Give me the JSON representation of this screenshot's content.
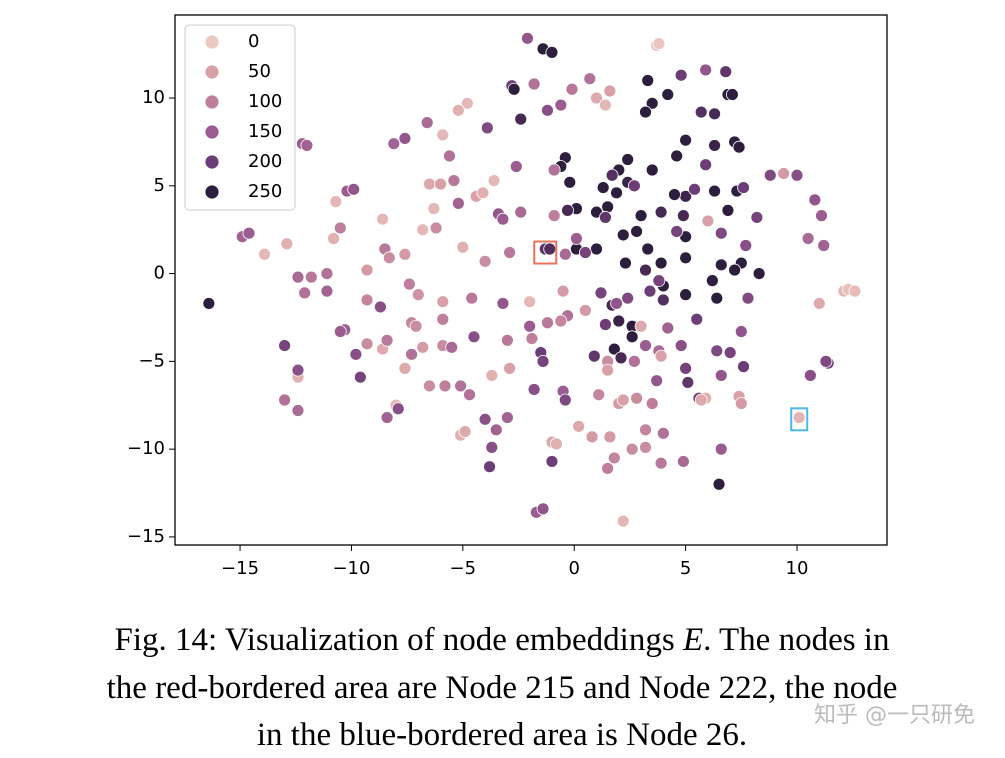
{
  "chart_data": {
    "type": "scatter",
    "xlim": [
      -17.92,
      14.04
    ],
    "ylim": [
      -15.46,
      14.73
    ],
    "xticks": [
      {
        "value": -15,
        "label": "−15"
      },
      {
        "value": -10,
        "label": "−10"
      },
      {
        "value": -5,
        "label": "−5"
      },
      0,
      5,
      10
    ],
    "yticks": [
      {
        "value": -15,
        "label": "−15"
      },
      {
        "value": -10,
        "label": "−10"
      },
      {
        "value": -5,
        "label": "−5"
      },
      0,
      5,
      10
    ],
    "legend": {
      "loc": "upper left",
      "labels": [
        0,
        50,
        100,
        150,
        200,
        250
      ],
      "colors": [
        "#ecc8c1",
        "#d9a1a7",
        "#bf7f9c",
        "#9b5c91",
        "#6d3d77",
        "#2e1e3d"
      ]
    },
    "highlights": [
      {
        "x": -1.3,
        "y": 1.2,
        "color": "#e8735a"
      },
      {
        "x": 10.1,
        "y": -8.3,
        "color": "#4db8e8"
      }
    ],
    "x": [
      -2.1,
      -1.4,
      -1.0,
      3.7,
      3.8,
      -2.8,
      -2.7,
      -1.8,
      0.7,
      1.0,
      1.6,
      1.4,
      -0.1,
      -0.6,
      -1.2,
      -2.4,
      -3.9,
      -4.8,
      -5.2,
      -5.9,
      -6.6,
      -7.6,
      -8.1,
      -5.6,
      -12.2,
      -12.0,
      3.3,
      3.5,
      3.2,
      4.2,
      4.8,
      5.9,
      6.8,
      6.9,
      7.1,
      6.3,
      5.7,
      5.0,
      4.6,
      3.5,
      2.4,
      2.0,
      1.3,
      2.4,
      1.9,
      1.5,
      1.0,
      0.1,
      -0.4,
      -0.6,
      -0.2,
      -0.3,
      0.1,
      1.0,
      2.2,
      2.8,
      2.3,
      3.3,
      3.9,
      4.0,
      3.9,
      3.0,
      4.9,
      5.0,
      5.0,
      5.0,
      5.9,
      6.3,
      7.2,
      7.4,
      6.3,
      7.3,
      6.9,
      7.5,
      7.2,
      6.6,
      6.2,
      6.4,
      8.3,
      5.0,
      4.5,
      1.7,
      2.0,
      1.4,
      2.6,
      1.8,
      2.1,
      2.6,
      0.5,
      1.4,
      1.7,
      2.7,
      4.6,
      5.4,
      6.6,
      7.6,
      8.2,
      7.7,
      8.8,
      10.0,
      10.8,
      11.1,
      11.2,
      10.5,
      7.8,
      7.5,
      7.6,
      7.0,
      6.4,
      6.6,
      5.6,
      5.0,
      5.1,
      5.5,
      4.8,
      4.2,
      3.8,
      3.2,
      3.7,
      4.0,
      3.9,
      4.9,
      6.6,
      6.5,
      4.0,
      3.4,
      3.2,
      3.8,
      2.4,
      1.2,
      1.9,
      2.7,
      1.5,
      0.9,
      9.4,
      6.0,
      3.0,
      3.9,
      5.9,
      5.7,
      7.4,
      7.5,
      11.0,
      12.1,
      12.3,
      12.6,
      10.1,
      10.6,
      11.4,
      11.3,
      -16.4,
      -14.9,
      -14.6,
      -13.9,
      -12.9,
      -12.4,
      -12.1,
      -11.8,
      -11.1,
      -11.1,
      -10.8,
      -10.5,
      -10.7,
      -10.2,
      -9.9,
      -10.3,
      -10.5,
      -9.8,
      -9.6,
      -12.4,
      -12.4,
      -13.0,
      -13.0,
      -12.4,
      -9.3,
      -9.3,
      -9.3,
      -8.7,
      -8.6,
      -8.4,
      -8.5,
      -8.3,
      -8.6,
      -8.0,
      -7.9,
      -8.4,
      -7.6,
      -7.4,
      -7.6,
      -7.3,
      -7.3,
      -7.1,
      -7.0,
      -6.8,
      -6.5,
      -6.5,
      -6.3,
      -6.2,
      -6.0,
      -5.9,
      -5.9,
      -5.9,
      -5.8,
      -5.5,
      -5.4,
      -5.2,
      -5.0,
      -5.1,
      -5.1,
      -4.9,
      -4.7,
      -4.5,
      -4.4,
      -4.1,
      -4.0,
      -4.0,
      -3.8,
      -3.7,
      -3.7,
      -3.6,
      -3.5,
      -3.4,
      -3.2,
      -3.2,
      -3.0,
      -3.0,
      -2.9,
      -2.9,
      -2.6,
      -2.4,
      -2.0,
      -2.0,
      -1.9,
      -1.8,
      -1.7,
      -1.4,
      -1.5,
      -1.4,
      -1.2,
      -1.0,
      -1.0,
      -0.8,
      -0.5,
      -0.4,
      -0.3,
      -0.6,
      -0.5,
      -0.4,
      0.2,
      0.8,
      1.6,
      1.5,
      1.8,
      1.5,
      1.1,
      2.0,
      2.2,
      2.2,
      2.8,
      3.2,
      3.5,
      3.2,
      2.6,
      -6.8,
      -4.6,
      -0.9,
      -0.9,
      0.1,
      0.5,
      -1.3,
      -1.1
    ],
    "values": [
      13.4,
      12.8,
      12.6,
      13.0,
      13.1,
      10.7,
      10.5,
      10.8,
      11.1,
      10.0,
      10.4,
      9.6,
      10.5,
      9.6,
      9.3,
      8.8,
      8.3,
      9.7,
      9.3,
      7.9,
      8.6,
      7.7,
      7.4,
      6.7,
      7.4,
      7.3,
      11.0,
      9.7,
      9.2,
      10.2,
      11.3,
      11.6,
      11.5,
      10.2,
      10.2,
      9.1,
      9.2,
      7.6,
      6.7,
      5.9,
      6.5,
      5.9,
      4.9,
      5.2,
      4.6,
      3.8,
      3.5,
      3.7,
      6.6,
      6.1,
      5.2,
      3.6,
      1.4,
      1.4,
      2.2,
      2.4,
      0.6,
      1.4,
      0.6,
      -0.7,
      3.5,
      3.3,
      3.3,
      2.1,
      0.9,
      -1.2,
      6.2,
      7.3,
      7.5,
      7.2,
      4.7,
      4.7,
      3.6,
      0.6,
      0.2,
      0.5,
      -0.4,
      -1.4,
      0.0,
      4.4,
      4.5,
      -1.8,
      -2.7,
      -2.9,
      -3.0,
      -4.3,
      -4.8,
      -3.6,
      1.2,
      3.2,
      5.6,
      5.0,
      2.4,
      4.8,
      2.3,
      4.9,
      3.2,
      1.6,
      5.6,
      5.6,
      4.2,
      3.3,
      1.6,
      2.0,
      -1.4,
      -3.3,
      -5.3,
      -4.5,
      -4.4,
      -5.8,
      -7.1,
      -5.4,
      -6.2,
      -2.6,
      -4.1,
      -3.1,
      -4.4,
      -4.1,
      -6.1,
      -9.1,
      -10.8,
      -10.7,
      -10.0,
      -12.0,
      -1.5,
      -1.0,
      0.2,
      -0.4,
      -1.4,
      -1.1,
      -1.7,
      -5.0,
      -5.0,
      -4.7,
      5.7,
      3.0,
      -3.0,
      -4.7,
      -7.1,
      -7.2,
      -7.0,
      -7.4,
      -1.7,
      -1.0,
      -0.9,
      -1.0,
      -8.2,
      -5.8,
      -5.1,
      -5.0,
      -1.7,
      2.1,
      2.3,
      1.1,
      1.7,
      -0.2,
      -1.1,
      -0.2,
      -1.0,
      0.0,
      2.0,
      2.6,
      4.1,
      4.7,
      4.8,
      -3.2,
      -3.3,
      -4.6,
      -5.9,
      -5.9,
      -5.5,
      -4.1,
      -7.2,
      -7.8,
      -4.0,
      -1.5,
      0.2,
      -1.9,
      -4.3,
      -3.8,
      1.4,
      0.9,
      3.1,
      -7.5,
      -7.7,
      -8.2,
      1.1,
      -0.6,
      -5.4,
      -4.6,
      -2.8,
      -3.0,
      -1.2,
      2.5,
      5.1,
      -6.4,
      3.7,
      2.6,
      5.1,
      -2.6,
      -1.6,
      -4.1,
      -6.4,
      -4.2,
      5.3,
      4.0,
      1.5,
      -6.4,
      -9.2,
      -9.0,
      -6.9,
      -3.6,
      4.4,
      4.6,
      0.7,
      -8.3,
      -11.0,
      -5.8,
      -9.9,
      5.3,
      -8.9,
      3.4,
      3.1,
      -1.7,
      -3.8,
      -8.2,
      1.2,
      -5.4,
      6.1,
      3.5,
      -3.0,
      -1.6,
      -3.7,
      -6.6,
      -13.6,
      -13.4,
      -4.5,
      -5.0,
      -2.8,
      -9.6,
      -10.7,
      -9.7,
      -6.7,
      -7.2,
      -2.4,
      -2.7,
      -1.0,
      1.1,
      -8.7,
      -9.3,
      -9.3,
      -11.1,
      -10.5,
      -5.5,
      -6.9,
      -7.4,
      -7.2,
      -14.1,
      -7.1,
      -9.9,
      -7.4,
      -8.9,
      -10.0,
      -4.2,
      -1.4,
      5.9,
      3.3,
      2.0,
      -2.1,
      1.4,
      1.4
    ],
    "hue": [
      160,
      260,
      270,
      10,
      5,
      200,
      270,
      120,
      120,
      40,
      50,
      20,
      110,
      150,
      170,
      230,
      180,
      20,
      30,
      20,
      130,
      160,
      140,
      120,
      150,
      140,
      270,
      260,
      280,
      250,
      200,
      160,
      210,
      290,
      285,
      230,
      220,
      280,
      260,
      250,
      260,
      270,
      250,
      240,
      270,
      250,
      260,
      270,
      280,
      290,
      270,
      230,
      270,
      250,
      280,
      270,
      260,
      250,
      280,
      250,
      230,
      290,
      230,
      270,
      280,
      290,
      200,
      240,
      290,
      280,
      250,
      260,
      280,
      270,
      290,
      260,
      270,
      280,
      290,
      240,
      250,
      230,
      240,
      200,
      270,
      290,
      230,
      270,
      190,
      210,
      220,
      200,
      190,
      200,
      180,
      200,
      190,
      170,
      180,
      170,
      160,
      150,
      140,
      130,
      180,
      160,
      200,
      190,
      180,
      160,
      200,
      190,
      210,
      200,
      170,
      140,
      130,
      150,
      160,
      120,
      110,
      130,
      150,
      260,
      220,
      200,
      230,
      190,
      180,
      190,
      160,
      120,
      80,
      210,
      60,
      50,
      40,
      50,
      30,
      40,
      50,
      60,
      40,
      20,
      10,
      15,
      26,
      170,
      190,
      180,
      250,
      140,
      150,
      20,
      30,
      130,
      120,
      110,
      140,
      120,
      30,
      100,
      20,
      150,
      160,
      150,
      150,
      170,
      190,
      30,
      170,
      190,
      120,
      130,
      80,
      90,
      60,
      170,
      40,
      110,
      110,
      80,
      20,
      20,
      170,
      140,
      60,
      100,
      40,
      120,
      90,
      80,
      70,
      20,
      40,
      80,
      20,
      80,
      50,
      100,
      50,
      80,
      100,
      130,
      110,
      140,
      30,
      120,
      30,
      40,
      120,
      170,
      50,
      30,
      80,
      170,
      200,
      30,
      170,
      20,
      140,
      160,
      150,
      160,
      110,
      140,
      110,
      50,
      150,
      130,
      150,
      20,
      100,
      170,
      150,
      160,
      200,
      190,
      110,
      40,
      200,
      30,
      150,
      180,
      120,
      90,
      60,
      130,
      40,
      60,
      60,
      100,
      90,
      50,
      90,
      60,
      50,
      20,
      80,
      80,
      100,
      90,
      80,
      60,
      110,
      120,
      100,
      150,
      60,
      215,
      222
    ]
  },
  "caption": {
    "line1_before": "Fig. 14: Visualization of node embeddings ",
    "symbol": "E",
    "line1_after": ". The nodes in",
    "line2": "the red-bordered area are Node 215 and Node 222, the node",
    "line3": "in the blue-bordered area is Node 26."
  },
  "watermark": "知乎 @一只研免"
}
